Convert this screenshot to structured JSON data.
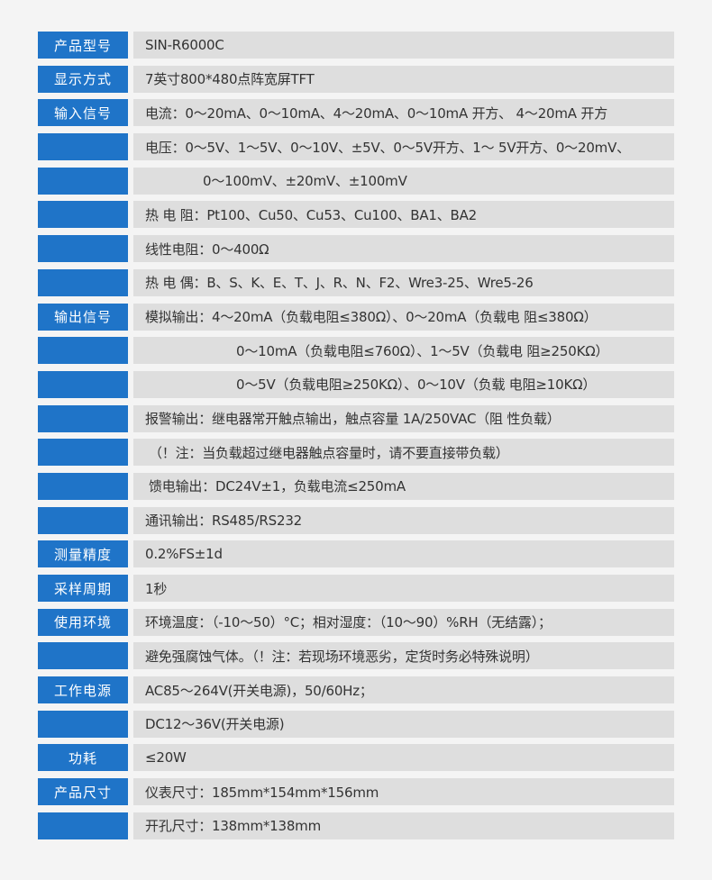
{
  "colors": {
    "label_bg": "#1f74c8",
    "value_bg": "#dedede",
    "page_bg": "#f4f4f4",
    "text": "#333333"
  },
  "rows": [
    {
      "label": "产品型号",
      "value": "SIN-R6000C"
    },
    {
      "label": "显示方式",
      "value": "7英寸800*480点阵宽屏TFT"
    },
    {
      "label": "输入信号",
      "value": "电流：0～20mA、0～10mA、4～20mA、0～10mA 开方、 4～20mA 开方"
    },
    {
      "label": "",
      "value": "电压：0～5V、1～5V、0～10V、±5V、0～5V开方、1～ 5V开方、0～20mV、"
    },
    {
      "label": "",
      "value": "0～100mV、±20mV、±100mV"
    },
    {
      "label": "",
      "value": "热 电 阻：Pt100、Cu50、Cu53、Cu100、BA1、BA2"
    },
    {
      "label": "",
      "value": "线性电阻：0～400Ω"
    },
    {
      "label": "",
      "value": "热 电 偶：B、S、K、E、T、J、R、N、F2、Wre3-25、Wre5-26"
    },
    {
      "label": "输出信号",
      "value": "模拟输出：4～20mA（负载电阻≤380Ω）、0～20mA（负载电 阻≤380Ω）"
    },
    {
      "label": "",
      "value": "0～10mA（负载电阻≤760Ω）、1～5V（负载电 阻≥250KΩ）"
    },
    {
      "label": "",
      "value": "0～5V（负载电阻≥250KΩ）、0～10V（负载 电阻≥10KΩ）"
    },
    {
      "label": "",
      "value": "报警输出：继电器常开触点输出，触点容量 1A/250VAC（阻 性负载）"
    },
    {
      "label": "",
      "value": "（！注：当负载超过继电器触点容量时，请不要直接带负载）"
    },
    {
      "label": "",
      "value": "馈电输出：DC24V±1，负载电流≤250mA"
    },
    {
      "label": "",
      "value": "通讯输出：RS485/RS232"
    },
    {
      "label": "测量精度",
      "value": "0.2%FS±1d"
    },
    {
      "label": "采样周期",
      "value": "1秒"
    },
    {
      "label": "使用环境",
      "value": "环境温度：（-10～50）°C；相对湿度：（10～90）%RH（无结露）；"
    },
    {
      "label": "",
      "value": "避免强腐蚀气体。（！注：若现场环境恶劣，定货时务必特殊说明）"
    },
    {
      "label": "工作电源",
      "value": "AC85～264V(开关电源)，50/60Hz；"
    },
    {
      "label": "",
      "value": "DC12～36V(开关电源)"
    },
    {
      "label": "功耗",
      "value": "≤20W"
    },
    {
      "label": "产品尺寸",
      "value": "仪表尺寸：185mm*154mm*156mm"
    },
    {
      "label": "",
      "value": "开孔尺寸：138mm*138mm"
    }
  ]
}
